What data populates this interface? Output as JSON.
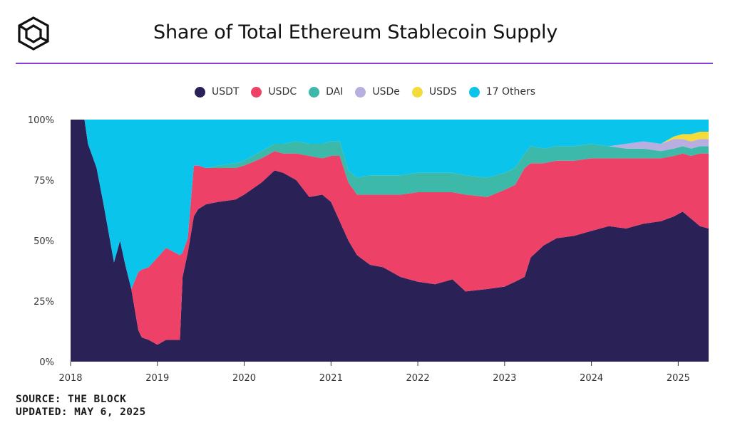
{
  "header": {
    "title": "Share of Total Ethereum Stablecoin Supply",
    "logo_icon": "the-block-cube-logo-icon"
  },
  "colors": {
    "accent_rule": "#8a3fd1",
    "USDT": "#2a2257",
    "USDC": "#ee4168",
    "DAI": "#3cb9a8",
    "USDe": "#b8aee0",
    "USDS": "#f3dc3a",
    "Others": "#0bc4ec"
  },
  "footer": {
    "source": "SOURCE: THE BLOCK",
    "updated": "UPDATED: MAY 6, 2025"
  },
  "chart_data": {
    "type": "area",
    "stacked": true,
    "title": "Share of Total Ethereum Stablecoin Supply",
    "xlabel": "",
    "ylabel": "",
    "xlim": [
      2018.0,
      2025.35
    ],
    "ylim": [
      0,
      100
    ],
    "grid": false,
    "legend_position": "top",
    "x_ticks": [
      2018,
      2019,
      2020,
      2021,
      2022,
      2023,
      2024,
      2025
    ],
    "x_tick_labels": [
      "2018",
      "2019",
      "2020",
      "2021",
      "2022",
      "2023",
      "2024",
      "2025"
    ],
    "y_ticks": [
      0,
      25,
      50,
      75,
      100
    ],
    "y_tick_labels": [
      "0%",
      "25%",
      "50%",
      "75%",
      "100%"
    ],
    "x": [
      2018.0,
      2018.16,
      2018.2,
      2018.3,
      2018.38,
      2018.5,
      2018.57,
      2018.63,
      2018.7,
      2018.78,
      2018.82,
      2018.9,
      2019.0,
      2019.1,
      2019.26,
      2019.29,
      2019.35,
      2019.42,
      2019.47,
      2019.56,
      2019.7,
      2019.9,
      2020.0,
      2020.2,
      2020.35,
      2020.45,
      2020.6,
      2020.75,
      2020.9,
      2021.0,
      2021.1,
      2021.2,
      2021.3,
      2021.45,
      2021.6,
      2021.8,
      2022.0,
      2022.2,
      2022.4,
      2022.55,
      2022.8,
      2023.0,
      2023.12,
      2023.23,
      2023.3,
      2023.45,
      2023.6,
      2023.8,
      2024.0,
      2024.2,
      2024.4,
      2024.6,
      2024.8,
      2024.95,
      2025.05,
      2025.15,
      2025.25,
      2025.35
    ],
    "series": [
      {
        "name": "USDT",
        "values": [
          100,
          100,
          90,
          80,
          65,
          41,
          50,
          40,
          30,
          13,
          10,
          9,
          7,
          9,
          9,
          35,
          45,
          60,
          63,
          65,
          66,
          67,
          69,
          74,
          79,
          78,
          75,
          68,
          69,
          66,
          58,
          50,
          44,
          40,
          39,
          35,
          33,
          32,
          34,
          29,
          30,
          31,
          33,
          35,
          43,
          48,
          51,
          52,
          54,
          56,
          55,
          57,
          58,
          60,
          62,
          59,
          56,
          55
        ]
      },
      {
        "name": "USDC",
        "values": [
          0,
          0,
          0,
          0,
          0,
          0,
          0,
          0,
          0,
          24,
          28,
          30,
          36,
          38,
          35,
          10,
          6,
          21,
          18,
          15,
          14,
          13,
          12,
          10,
          8,
          8,
          11,
          17,
          15,
          19,
          27,
          24,
          25,
          29,
          30,
          34,
          37,
          38,
          36,
          40,
          38,
          40,
          40,
          45,
          39,
          34,
          32,
          31,
          30,
          28,
          29,
          27,
          26,
          25,
          24,
          26,
          30,
          31
        ]
      },
      {
        "name": "DAI",
        "values": [
          0,
          0,
          0,
          0,
          0,
          0,
          0,
          0,
          0,
          0,
          0,
          0,
          0,
          0,
          0,
          0,
          0,
          0,
          0,
          0,
          1,
          2,
          2,
          3,
          3,
          4,
          5,
          5,
          6,
          6,
          6,
          5,
          7,
          8,
          8,
          8,
          8,
          8,
          8,
          8,
          8,
          7,
          7,
          6,
          7,
          6,
          6,
          6,
          6,
          5,
          4,
          4,
          3,
          3,
          3,
          3,
          3,
          3
        ]
      },
      {
        "name": "USDe",
        "values": [
          0,
          0,
          0,
          0,
          0,
          0,
          0,
          0,
          0,
          0,
          0,
          0,
          0,
          0,
          0,
          0,
          0,
          0,
          0,
          0,
          0,
          0,
          0,
          0,
          0,
          0,
          0,
          0,
          0,
          0,
          0,
          0,
          0,
          0,
          0,
          0,
          0,
          0,
          0,
          0,
          0,
          0,
          0,
          0,
          0,
          0,
          0,
          0,
          0,
          0,
          2,
          3,
          3,
          4,
          3,
          3,
          3,
          3
        ]
      },
      {
        "name": "USDS",
        "values": [
          0,
          0,
          0,
          0,
          0,
          0,
          0,
          0,
          0,
          0,
          0,
          0,
          0,
          0,
          0,
          0,
          0,
          0,
          0,
          0,
          0,
          0,
          0,
          0,
          0,
          0,
          0,
          0,
          0,
          0,
          0,
          0,
          0,
          0,
          0,
          0,
          0,
          0,
          0,
          0,
          0,
          0,
          0,
          0,
          0,
          0,
          0,
          0,
          0,
          0,
          0,
          0,
          0,
          1,
          2,
          3,
          3,
          3
        ]
      },
      {
        "name": "17 Others",
        "values": [
          0,
          0,
          10,
          20,
          35,
          59,
          50,
          60,
          70,
          63,
          62,
          61,
          57,
          53,
          56,
          55,
          49,
          19,
          19,
          20,
          19,
          18,
          17,
          13,
          10,
          10,
          9,
          10,
          10,
          9,
          9,
          21,
          24,
          23,
          23,
          23,
          22,
          22,
          22,
          23,
          24,
          22,
          20,
          14,
          11,
          12,
          11,
          11,
          10,
          11,
          10,
          9,
          10,
          7,
          6,
          6,
          5,
          5
        ]
      }
    ]
  }
}
